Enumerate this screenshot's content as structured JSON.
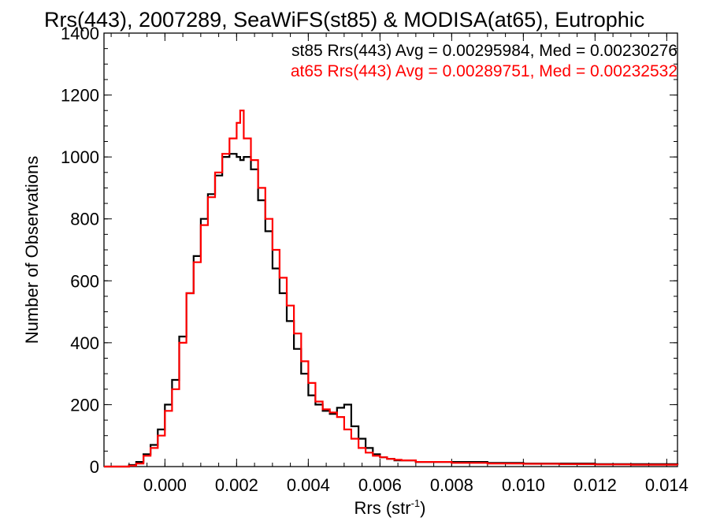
{
  "chart_data": {
    "type": "histogram-step",
    "title": "Rrs(443), 2007289, SeaWiFS(st85) & MODISA(at65), Eutrophic",
    "xlabel": "Rrs (str",
    "xlabel_sup": "-1",
    "xlabel_close": ")",
    "ylabel": "Number of Observations",
    "xlim": [
      -0.0017,
      0.0143
    ],
    "ylim": [
      0,
      1400
    ],
    "x_ticks": [
      0.0,
      0.002,
      0.004,
      0.006,
      0.008,
      0.01,
      0.012,
      0.014
    ],
    "x_tick_labels": [
      "0.000",
      "0.002",
      "0.004",
      "0.006",
      "0.008",
      "0.010",
      "0.012",
      "0.014"
    ],
    "y_ticks": [
      0,
      200,
      400,
      600,
      800,
      1000,
      1200,
      1400
    ],
    "y_tick_labels": [
      "0",
      "200",
      "400",
      "600",
      "800",
      "1000",
      "1200",
      "1400"
    ],
    "grid": false,
    "annotations": [
      {
        "text": "st85 Rrs(443) Avg = 0.00295984, Med = 0.00230276",
        "color": "#000000"
      },
      {
        "text": "at65 Rrs(443) Avg = 0.00289751, Med = 0.00232532",
        "color": "#ff0000"
      }
    ],
    "series": [
      {
        "color": "#000000",
        "x": [
          -0.0017,
          -0.0012,
          -0.001,
          -0.0008,
          -0.0006,
          -0.0004,
          -0.0002,
          0.0,
          0.0002,
          0.0004,
          0.0006,
          0.0008,
          0.001,
          0.0012,
          0.0014,
          0.0016,
          0.0018,
          0.002,
          0.0021,
          0.0022,
          0.0024,
          0.0026,
          0.0028,
          0.003,
          0.0032,
          0.0034,
          0.0036,
          0.0038,
          0.004,
          0.0042,
          0.0044,
          0.0046,
          0.0048,
          0.005,
          0.0052,
          0.0054,
          0.0056,
          0.0058,
          0.006,
          0.0062,
          0.0064,
          0.0066,
          0.007,
          0.008,
          0.009,
          0.01,
          0.011,
          0.012,
          0.013,
          0.0143
        ],
        "y": [
          0,
          0,
          5,
          15,
          40,
          70,
          120,
          200,
          280,
          420,
          560,
          680,
          800,
          880,
          940,
          1000,
          1010,
          1000,
          990,
          1000,
          960,
          860,
          760,
          640,
          560,
          470,
          380,
          300,
          230,
          200,
          180,
          170,
          190,
          200,
          130,
          90,
          60,
          40,
          30,
          25,
          20,
          20,
          15,
          15,
          12,
          10,
          10,
          8,
          8,
          5
        ]
      },
      {
        "color": "#ff0000",
        "x": [
          -0.0017,
          -0.0012,
          -0.001,
          -0.0008,
          -0.0006,
          -0.0004,
          -0.0002,
          0.0,
          0.0002,
          0.0004,
          0.0006,
          0.0008,
          0.001,
          0.0012,
          0.0014,
          0.0016,
          0.0018,
          0.002,
          0.0021,
          0.0022,
          0.0024,
          0.0026,
          0.0028,
          0.003,
          0.0032,
          0.0034,
          0.0036,
          0.0038,
          0.004,
          0.0042,
          0.0044,
          0.0046,
          0.0048,
          0.005,
          0.0052,
          0.0054,
          0.0056,
          0.0058,
          0.006,
          0.0062,
          0.0064,
          0.0066,
          0.007,
          0.008,
          0.009,
          0.01,
          0.011,
          0.012,
          0.013,
          0.0143
        ],
        "y": [
          0,
          0,
          3,
          10,
          35,
          60,
          100,
          180,
          250,
          400,
          560,
          660,
          780,
          870,
          950,
          1010,
          1060,
          1110,
          1150,
          1060,
          990,
          900,
          800,
          700,
          610,
          520,
          430,
          340,
          270,
          210,
          185,
          175,
          160,
          120,
          90,
          60,
          45,
          35,
          30,
          25,
          22,
          20,
          15,
          12,
          10,
          9,
          8,
          7,
          6,
          5
        ]
      }
    ]
  }
}
